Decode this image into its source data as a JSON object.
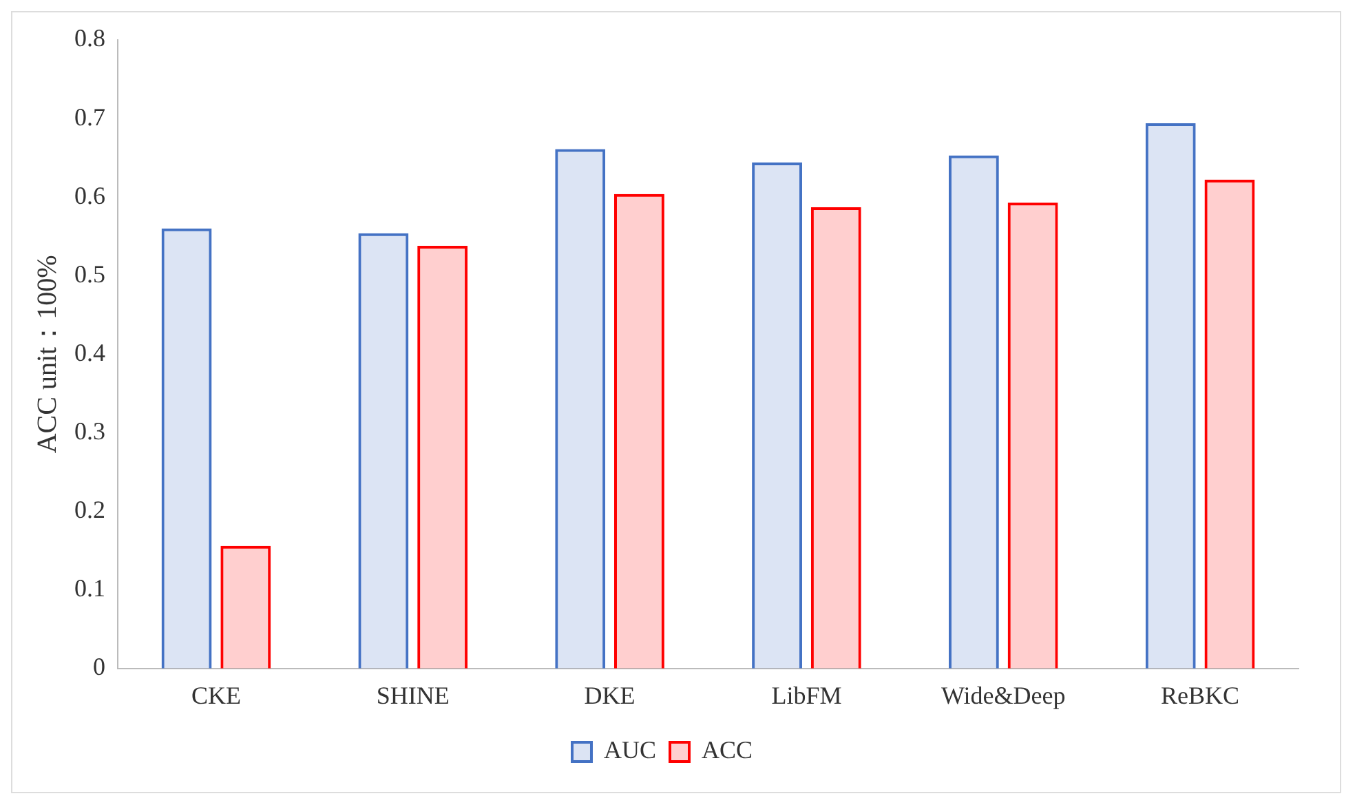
{
  "chart_data": {
    "type": "bar",
    "ylabel": "ACC unit：100%",
    "categories": [
      "CKE",
      "SHINE",
      "DKE",
      "LibFM",
      "Wide&Deep",
      "ReBKC"
    ],
    "series": [
      {
        "name": "AUC",
        "color": "#4472c4",
        "values": [
          0.56,
          0.554,
          0.661,
          0.644,
          0.653,
          0.694
        ]
      },
      {
        "name": "ACC",
        "color": "#ff0000",
        "values": [
          0.156,
          0.538,
          0.604,
          0.587,
          0.593,
          0.622
        ]
      }
    ],
    "ylim": [
      0,
      0.8
    ],
    "yticks": [
      0,
      0.1,
      0.2,
      0.3,
      0.4,
      0.5,
      0.6,
      0.7,
      0.8
    ],
    "grid": false,
    "legend": "bottom"
  }
}
